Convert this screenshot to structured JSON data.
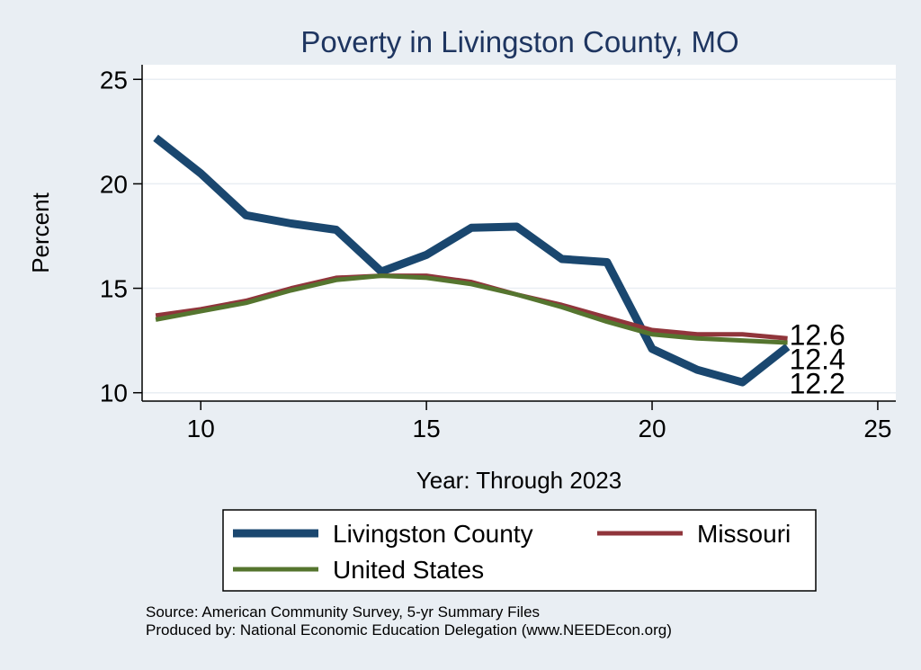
{
  "colors": {
    "background": "#e9eef3",
    "plot_background": "#ffffff",
    "grid": "#e9eef3",
    "title": "#1e3560",
    "livingston": "#1a476f",
    "missouri": "#90353b",
    "united_states": "#55752f"
  },
  "chart_data": {
    "type": "line",
    "title": "Poverty in Livingston County, MO",
    "xlabel": "Year: Through 2023",
    "ylabel": "Percent",
    "xlim": [
      8.7,
      25.4
    ],
    "ylim": [
      9.6,
      25.7
    ],
    "xticks": [
      10,
      15,
      20,
      25
    ],
    "yticks": [
      10,
      15,
      20,
      25
    ],
    "grid": true,
    "legend_position": "bottom",
    "x": [
      9,
      10,
      11,
      12,
      13,
      14,
      15,
      16,
      17,
      18,
      19,
      20,
      21,
      22,
      23
    ],
    "series": [
      {
        "name": "Livingston County",
        "color_key": "livingston",
        "values": [
          22.2,
          20.5,
          18.5,
          18.1,
          17.8,
          15.8,
          16.6,
          17.9,
          17.95,
          16.4,
          16.25,
          12.1,
          11.1,
          10.5,
          12.2
        ],
        "end_label": "12.2"
      },
      {
        "name": "Missouri",
        "color_key": "missouri",
        "values": [
          13.7,
          14.0,
          14.4,
          15.0,
          15.5,
          15.6,
          15.6,
          15.3,
          14.7,
          14.2,
          13.6,
          13.0,
          12.8,
          12.8,
          12.6
        ],
        "end_label": "12.6"
      },
      {
        "name": "United States",
        "color_key": "united_states",
        "values": [
          13.5,
          13.9,
          14.3,
          14.9,
          15.4,
          15.6,
          15.5,
          15.2,
          14.7,
          14.1,
          13.4,
          12.8,
          12.6,
          12.5,
          12.4
        ],
        "end_label": "12.4"
      }
    ]
  },
  "legend": {
    "items": [
      {
        "label": "Livingston County",
        "color_key": "livingston",
        "thickness": "thick"
      },
      {
        "label": "Missouri",
        "color_key": "missouri",
        "thickness": "thin"
      },
      {
        "label": "United States",
        "color_key": "united_states",
        "thickness": "thin"
      }
    ]
  },
  "notes": {
    "source": "Source: American Community Survey, 5-yr Summary Files",
    "produced_by": "Produced by: National Economic Education Delegation (www.NEEDEcon.org)"
  }
}
